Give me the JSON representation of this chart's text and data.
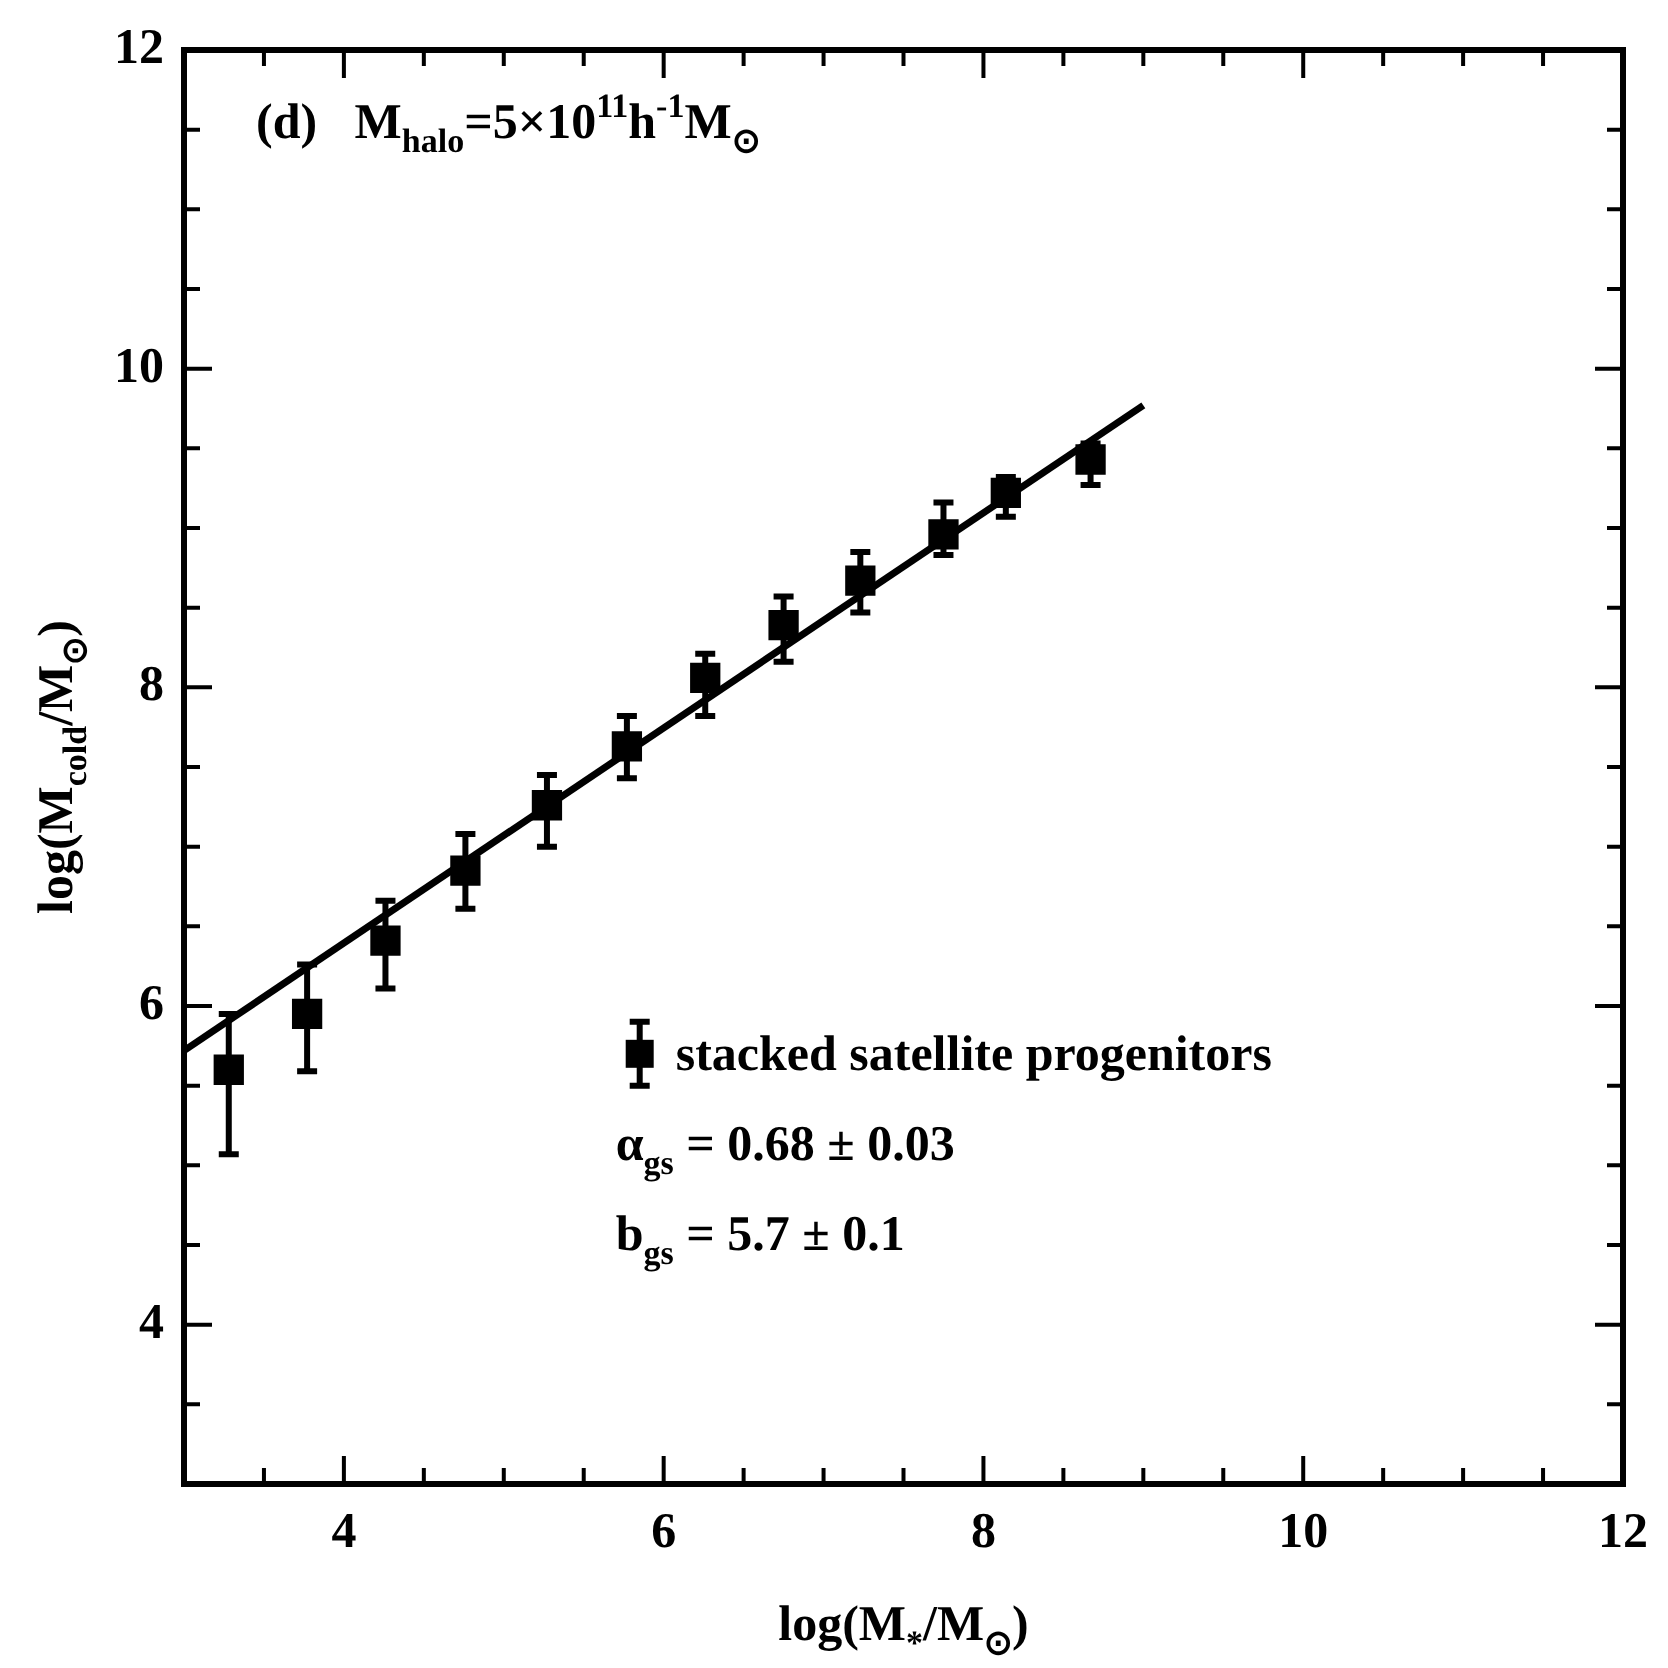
{
  "chart_data": {
    "type": "scatter",
    "title": "(d)   M$_{halo}$=5×10$^{11}$h$^{-1}$M$_{⊙}$",
    "xlabel": "log(M$_{*}$/M$_{⊙}$)",
    "ylabel": "log(M$_{cold}$/M$_{⊙}$)",
    "xlim": [
      3,
      12
    ],
    "ylim": [
      3,
      12
    ],
    "xticks": [
      {
        "value": 3.5,
        "label": null
      },
      4,
      {
        "value": 4.5,
        "label": null
      },
      {
        "value": 5,
        "label": null
      },
      {
        "value": 5.5,
        "label": null
      },
      6,
      {
        "value": 6.5,
        "label": null
      },
      {
        "value": 7,
        "label": null
      },
      {
        "value": 7.5,
        "label": null
      },
      8,
      {
        "value": 8.5,
        "label": null
      },
      {
        "value": 9,
        "label": null
      },
      {
        "value": 9.5,
        "label": null
      },
      10,
      {
        "value": 10.5,
        "label": null
      },
      {
        "value": 11,
        "label": null
      },
      {
        "value": 11.5,
        "label": null
      },
      12
    ],
    "yticks": [
      {
        "value": 3.5,
        "label": null
      },
      4,
      {
        "value": 4.5,
        "label": null
      },
      {
        "value": 5,
        "label": null
      },
      {
        "value": 5.5,
        "label": null
      },
      6,
      {
        "value": 6.5,
        "label": null
      },
      {
        "value": 7,
        "label": null
      },
      {
        "value": 7.5,
        "label": null
      },
      8,
      {
        "value": 8.5,
        "label": null
      },
      {
        "value": 9,
        "label": null
      },
      {
        "value": 9.5,
        "label": null
      },
      10,
      {
        "value": 10.5,
        "label": null
      },
      {
        "value": 11,
        "label": null
      },
      {
        "value": 11.5,
        "label": null
      },
      12
    ],
    "series": [
      {
        "name": "stacked satellite progenitors",
        "marker": "square",
        "color": "#000000",
        "x": [
          3.28,
          3.77,
          4.26,
          4.76,
          5.27,
          5.77,
          6.26,
          6.75,
          7.23,
          7.75,
          8.14,
          8.67
        ],
        "values": [
          5.6,
          5.95,
          6.41,
          6.85,
          7.26,
          7.63,
          8.06,
          8.39,
          8.67,
          8.96,
          9.22,
          9.43
        ],
        "errors": [
          [
            5.07,
            5.95
          ],
          [
            5.59,
            6.26
          ],
          [
            6.11,
            6.66
          ],
          [
            6.61,
            7.08
          ],
          [
            7.0,
            7.45
          ],
          [
            7.43,
            7.82
          ],
          [
            7.82,
            8.21
          ],
          [
            8.16,
            8.57
          ],
          [
            8.47,
            8.85
          ],
          [
            8.83,
            9.16
          ],
          [
            9.07,
            9.32
          ],
          [
            9.27,
            9.53
          ]
        ]
      },
      {
        "type": "line",
        "marker": "none",
        "color": "#000000",
        "x": [
          3,
          9
        ],
        "values": [
          5.72,
          9.77
        ]
      }
    ],
    "annotations": [
      "α$_{gs}$ = 0.68 ± 0.03",
      "b$_{gs}$ = 5.7 ± 0.1"
    ],
    "line_style": "solid",
    "legend": "bottom right",
    "grid": false
  }
}
